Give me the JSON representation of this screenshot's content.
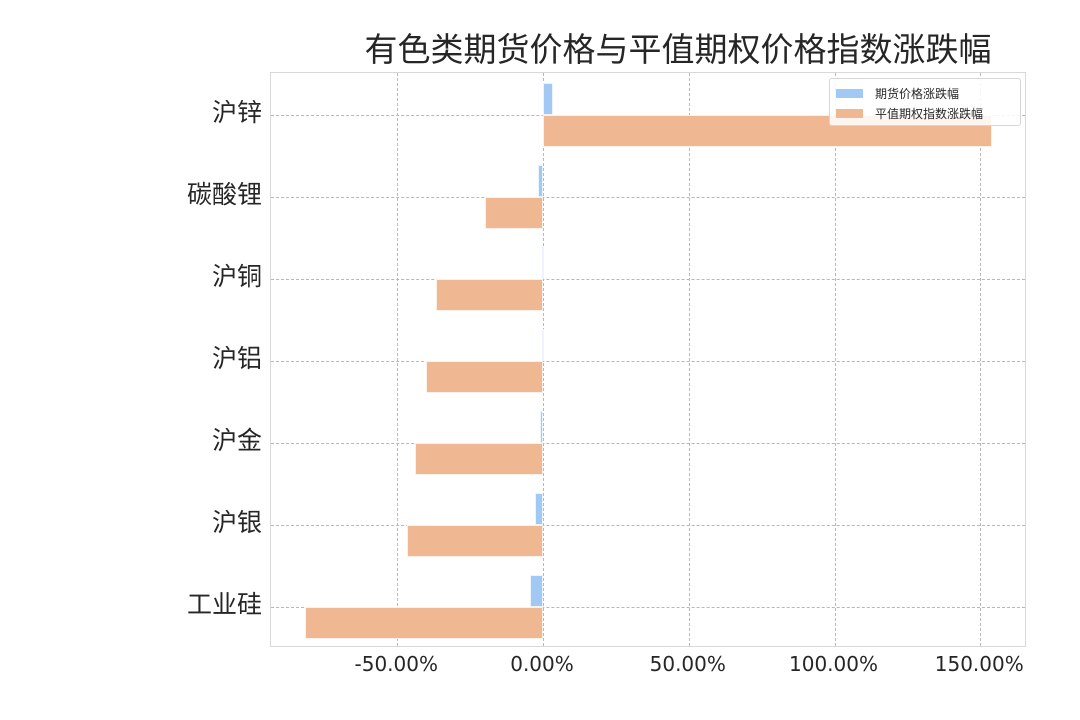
{
  "chart_data": {
    "type": "bar",
    "orientation": "horizontal",
    "title": "有色类期货价格与平值期权价格指数涨跌幅",
    "xlabel": "",
    "ylabel": "",
    "categories": [
      "沪锌",
      "碳酸锂",
      "沪铜",
      "沪铝",
      "沪金",
      "沪银",
      "工业硅"
    ],
    "series": [
      {
        "name": "期货价格涨跌幅",
        "color": "#a1c9f4",
        "values": [
          3.5,
          -1.6,
          -0.5,
          -0.3,
          -1.1,
          -2.8,
          -4.4
        ]
      },
      {
        "name": "平值期权指数涨跌幅",
        "color": "#f0b892",
        "values": [
          154.0,
          -20.0,
          -36.8,
          -40.0,
          -44.0,
          -46.8,
          -81.5
        ]
      }
    ],
    "xticks": [
      "-50.00%",
      "0.00%",
      "50.00%",
      "100.00%",
      "150.00%"
    ],
    "xtick_values": [
      -50,
      0,
      50,
      100,
      150
    ],
    "xlim": [
      -93,
      166
    ],
    "grid": true,
    "legend_position": "upper right",
    "unit": "%"
  },
  "legend": {
    "items": [
      "期货价格涨跌幅",
      "平值期权指数涨跌幅"
    ]
  }
}
